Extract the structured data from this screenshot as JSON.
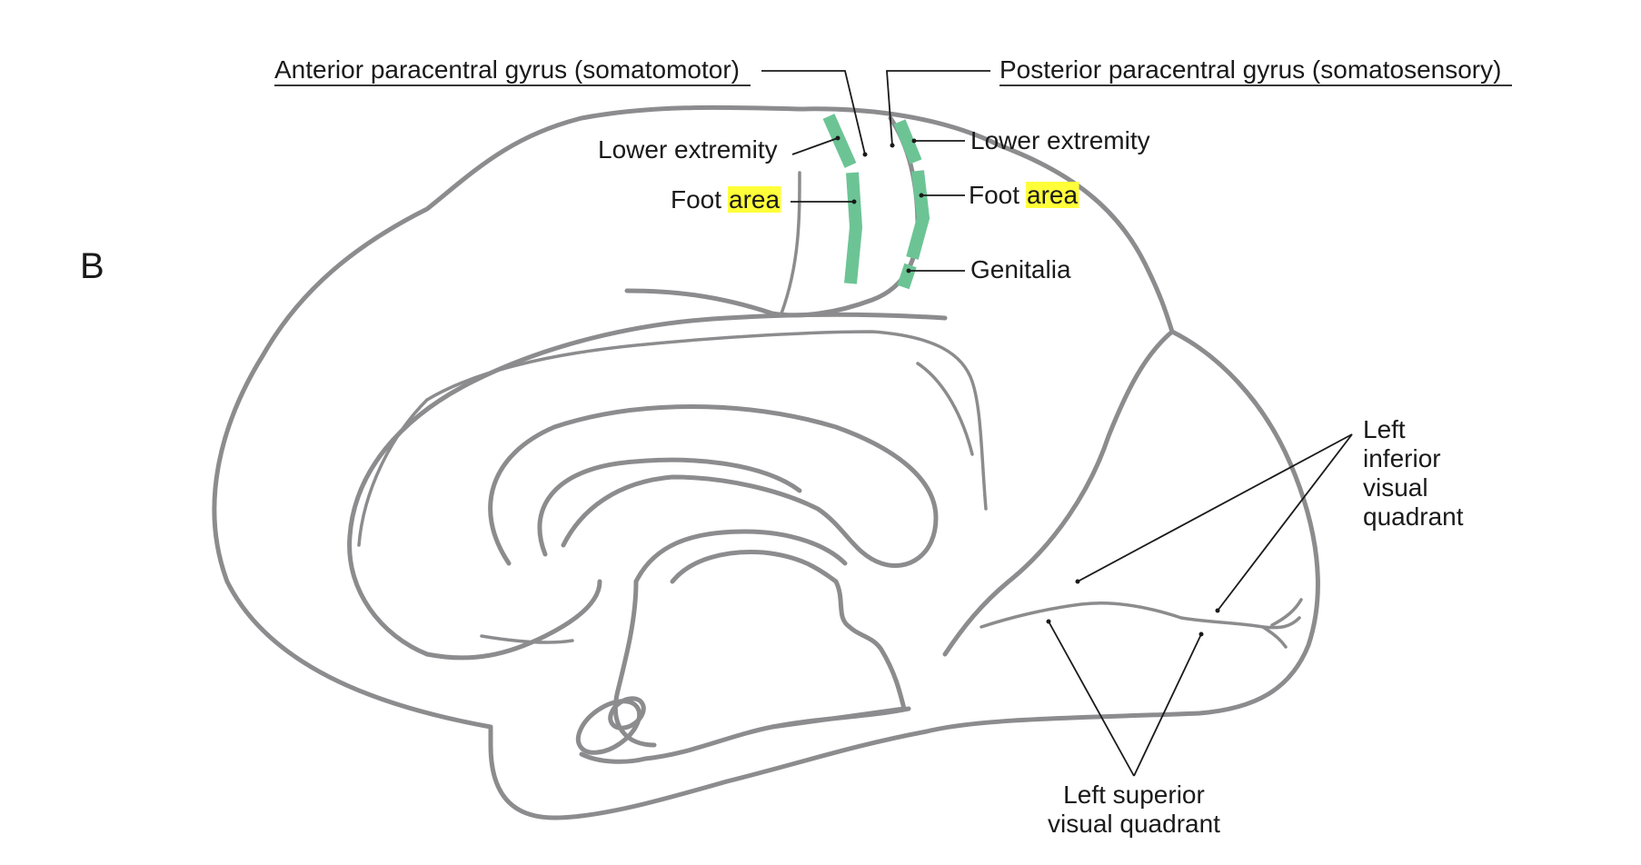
{
  "panel_letter": "B",
  "labels": {
    "anterior_gyrus": "Anterior paracentral gyrus (somatomotor)",
    "posterior_gyrus": "Posterior paracentral gyrus (somatosensory)",
    "lower_extremity_left": "Lower extremity",
    "lower_extremity_right": "Lower extremity",
    "foot_left_prefix": "Foot",
    "foot_left_highlight": "area",
    "foot_right_prefix": "Foot",
    "foot_right_highlight": "area",
    "genitalia": "Genitalia",
    "left_inferior": [
      "Left",
      "inferior",
      "visual",
      "quadrant"
    ],
    "left_superior": [
      "Left superior",
      "visual quadrant"
    ]
  },
  "colors": {
    "brain_outline": "#8c8c8e",
    "cortical_strip": "#6cc495",
    "highlight": "#ffff3a",
    "text": "#1a1a1a"
  }
}
